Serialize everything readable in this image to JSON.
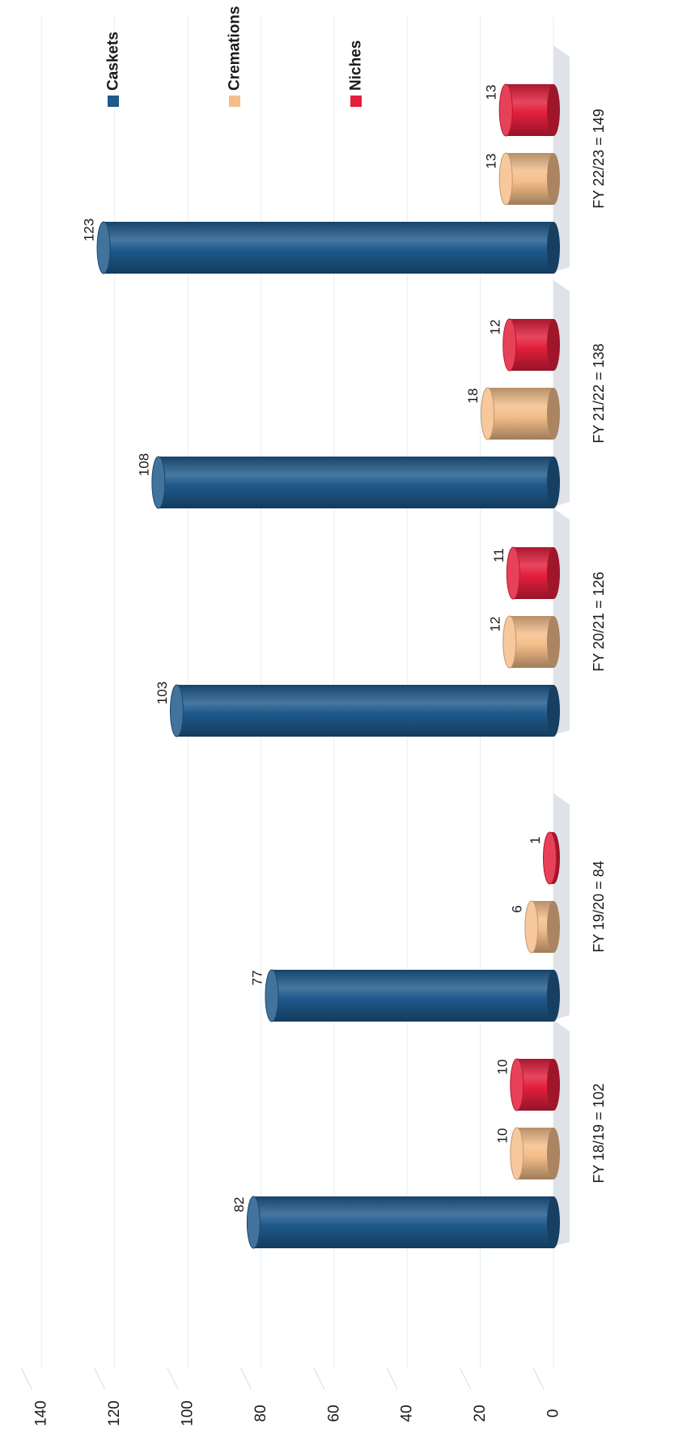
{
  "chart_data": {
    "type": "bar",
    "orientation": "horizontal-bars, page rotated 90 degrees",
    "style": "3d-cylinder",
    "categories": [
      "FY 18/19 = 102",
      "FY 19/20 = 84",
      "FY 20/21 = 126",
      "FY 21/22 = 138",
      "FY 22/23 = 149"
    ],
    "series": [
      {
        "name": "Caskets",
        "values": [
          82,
          77,
          103,
          108,
          123
        ],
        "color": "#1f5a8c"
      },
      {
        "name": "Cremations",
        "values": [
          10,
          6,
          12,
          18,
          13
        ],
        "color": "#f4be8a"
      },
      {
        "name": "Niches",
        "values": [
          10,
          1,
          11,
          12,
          13
        ],
        "color": "#e31f3c"
      }
    ],
    "value_labels": [
      [
        "82",
        "77",
        "103",
        "108",
        "123"
      ],
      [
        "10",
        "6",
        "12",
        "18",
        "13"
      ],
      [
        "10",
        "1",
        "11",
        "12",
        "13"
      ]
    ],
    "value_axis": {
      "min": 0,
      "max": 140,
      "step": 20,
      "tick_labels": [
        "0",
        "20",
        "40",
        "60",
        "80",
        "100",
        "120",
        "140"
      ]
    },
    "grid": true,
    "legend": {
      "position": "top-right",
      "entries": [
        "Caskets",
        "Cremations",
        "Niches"
      ]
    }
  }
}
